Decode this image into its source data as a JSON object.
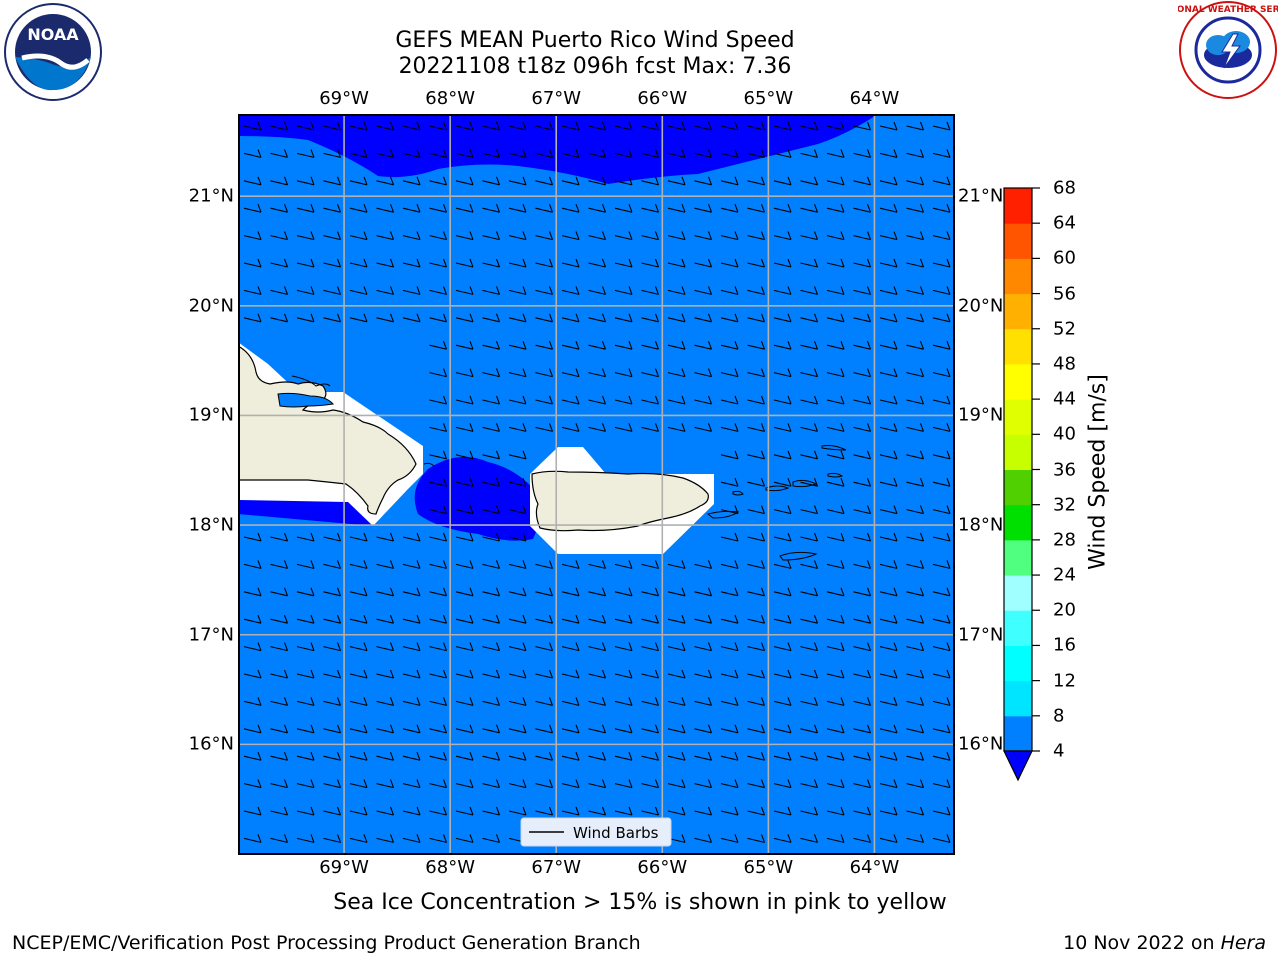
{
  "title": {
    "line1": "GEFS MEAN Puerto Rico Wind Speed",
    "line2": "20221108 t18z 096h fcst   Max: 7.36"
  },
  "logos": {
    "left": {
      "name": "noaa-logo",
      "text": "NOAA"
    },
    "right": {
      "name": "nws-logo",
      "text": "NATIONAL WEATHER SERVICE"
    }
  },
  "map": {
    "lon_ticks": [
      "69°W",
      "68°W",
      "67°W",
      "66°W",
      "65°W",
      "64°W"
    ],
    "lat_ticks": [
      "21°N",
      "20°N",
      "19°N",
      "18°N",
      "17°N",
      "16°N"
    ],
    "lon_range": [
      -70.0,
      -63.25
    ],
    "lat_range": [
      15.0,
      21.75
    ],
    "gridlines": true,
    "fill_color": "#0080ff",
    "high_color": "#0000ff",
    "land_color": "#efeedc",
    "legend": {
      "label": "Wind Barbs",
      "placement": "bottom-center"
    }
  },
  "colorbar": {
    "label": "Wind Speed [m/s]",
    "ticks": [
      "68",
      "64",
      "60",
      "56",
      "52",
      "48",
      "44",
      "40",
      "36",
      "32",
      "28",
      "24",
      "20",
      "16",
      "12",
      "8",
      "4"
    ],
    "levels": [
      4,
      8,
      12,
      16,
      20,
      24,
      28,
      32,
      36,
      40,
      44,
      48,
      52,
      56,
      60,
      64,
      68
    ],
    "colors": [
      "#0080ff",
      "#00e5ff",
      "#00ffff",
      "#40ffff",
      "#a0ffff",
      "#50ff80",
      "#00e000",
      "#50d000",
      "#c8ff00",
      "#e0ff00",
      "#ffff00",
      "#ffe000",
      "#ffb000",
      "#ff8800",
      "#ff5500",
      "#ff2000",
      "#ff0000"
    ],
    "extend_color": "#0000ff"
  },
  "caption": "Sea Ice Concentration > 15% is shown in pink to yellow",
  "footer": {
    "left": "NCEP/EMC/Verification Post Processing Product Generation Branch",
    "right_date": "10 Nov 2022 on ",
    "right_machine": "Hera"
  }
}
